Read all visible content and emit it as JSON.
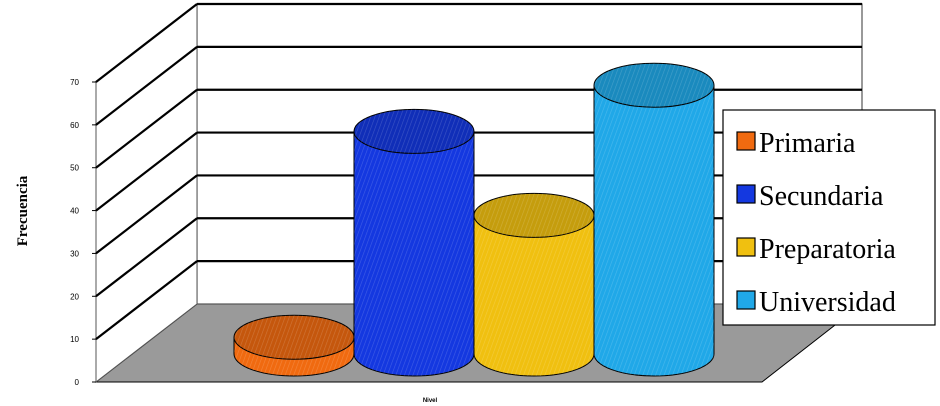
{
  "chart_data": {
    "type": "bar",
    "style": "3d-cylinder",
    "categories": [
      "Primaria",
      "Secundaria",
      "Preparatoria",
      "Universidad"
    ],
    "values": [
      4,
      53,
      33,
      64
    ],
    "colors": [
      "#f06a10",
      "#1438e0",
      "#f0c010",
      "#20a8e8"
    ],
    "xlabel": "Nivel",
    "ylabel": "Frecuencia",
    "ylim": [
      0,
      70
    ],
    "yticks": [
      "0",
      "10",
      "20",
      "30",
      "40",
      "50",
      "60",
      "70"
    ],
    "grid": true,
    "legend_position": "right",
    "legend": [
      "Primaria",
      "Secundaria",
      "Preparatoria",
      "Universidad"
    ]
  }
}
